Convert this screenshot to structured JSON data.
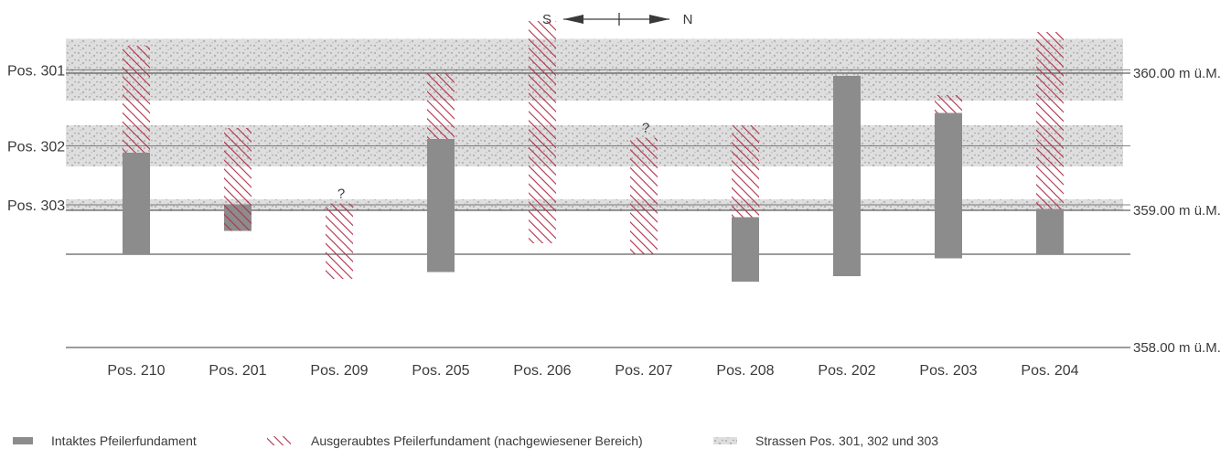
{
  "compass": {
    "left": "S",
    "right": "N"
  },
  "elevation_labels": [
    {
      "text": "360.00 m ü.M.",
      "value": 360.0
    },
    {
      "text": "359.00 m ü.M.",
      "value": 359.0
    },
    {
      "text": "358.00 m ü.M.",
      "value": 358.0
    }
  ],
  "roads": [
    {
      "label": "Pos. 301",
      "top": 360.25,
      "bottom": 359.8
    },
    {
      "label": "Pos. 302",
      "top": 359.62,
      "bottom": 359.32
    },
    {
      "label": "Pos. 303",
      "top": 359.08,
      "bottom": 359.0
    }
  ],
  "reference_line_extra": 358.68,
  "pillars": [
    {
      "label": "Pos. 210",
      "intact": [
        358.68,
        359.42
      ],
      "excavated": [
        359.42,
        360.2
      ],
      "question": false
    },
    {
      "label": "Pos. 201",
      "intact": [
        358.85,
        359.04
      ],
      "excavated": [
        358.85,
        359.6
      ],
      "question": false
    },
    {
      "label": "Pos. 209",
      "intact": null,
      "excavated": [
        358.5,
        359.05
      ],
      "question": true
    },
    {
      "label": "Pos. 205",
      "intact": [
        358.55,
        359.52
      ],
      "excavated": [
        359.52,
        360.0
      ],
      "question": false
    },
    {
      "label": "Pos. 206",
      "intact": null,
      "excavated": [
        358.76,
        360.38
      ],
      "question": false
    },
    {
      "label": "Pos. 207",
      "intact": null,
      "excavated": [
        358.68,
        359.53
      ],
      "question": true
    },
    {
      "label": "Pos. 208",
      "intact": [
        358.48,
        358.95
      ],
      "excavated": [
        358.95,
        359.62
      ],
      "question": false
    },
    {
      "label": "Pos. 202",
      "intact": [
        358.52,
        359.98
      ],
      "excavated": null,
      "question": false
    },
    {
      "label": "Pos. 203",
      "intact": [
        358.65,
        359.71
      ],
      "excavated": [
        359.71,
        359.84
      ],
      "question": false
    },
    {
      "label": "Pos. 204",
      "intact": [
        358.68,
        359.01
      ],
      "excavated": [
        359.01,
        360.3
      ],
      "question": false
    }
  ],
  "question_mark": "?",
  "legend": {
    "intact": "Intaktes Pfeilerfundament",
    "excavated": "Ausgeraubtes Pfeilerfundament (nachgewiesener Bereich)",
    "roads": "Strassen Pos. 301, 302 und 303"
  },
  "colors": {
    "intact": "#8c8c8c",
    "hatch": "#b0304a",
    "road": "#dcdcdc",
    "line": "#3a3a3a"
  }
}
